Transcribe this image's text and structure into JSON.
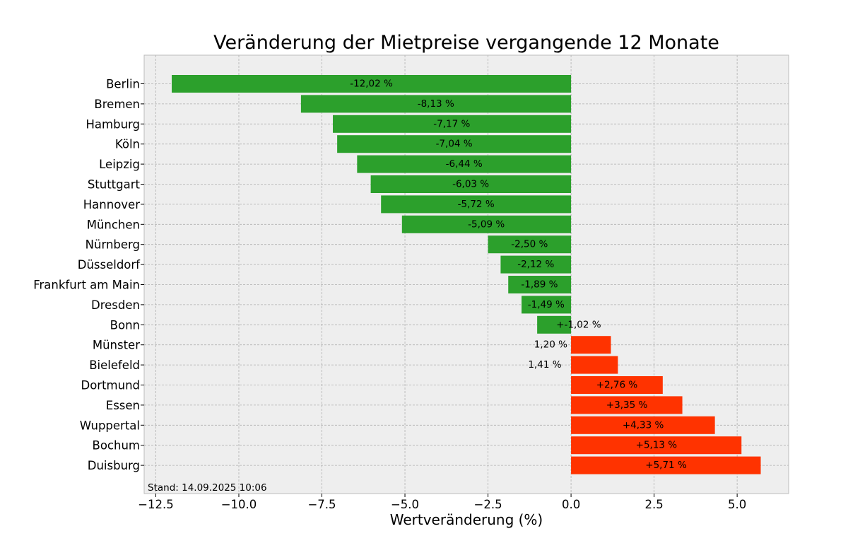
{
  "chart_data": {
    "type": "bar",
    "orientation": "horizontal",
    "title": "Veränderung der Mietpreise vergangende 12 Monate",
    "xlabel": "Wertveränderung (%)",
    "ylabel": "",
    "xlim": [
      -12.85,
      6.55
    ],
    "xticks": [
      -12.5,
      -10.0,
      -7.5,
      -5.0,
      -2.5,
      0.0,
      2.5,
      5.0
    ],
    "xtick_labels": [
      "−12.5",
      "−10.0",
      "−7.5",
      "−5.0",
      "−2.5",
      "0.0",
      "2.5",
      "5.0"
    ],
    "grid": true,
    "footnote": "Stand: 14.09.2025 10:06",
    "colors": {
      "negative": "#2ca02c",
      "positive": "#ff3300",
      "plot_bg": "#eeeeee",
      "grid": "#b0b0b0",
      "frame": "#bcbcbc"
    },
    "categories": [
      "Berlin",
      "Bremen",
      "Hamburg",
      "Köln",
      "Leipzig",
      "Stuttgart",
      "Hannover",
      "München",
      "Nürnberg",
      "Düsseldorf",
      "Frankfurt am Main",
      "Dresden",
      "Bonn",
      "Münster",
      "Bielefeld",
      "Dortmund",
      "Essen",
      "Wuppertal",
      "Bochum",
      "Duisburg"
    ],
    "values": [
      -12.02,
      -8.13,
      -7.17,
      -7.04,
      -6.44,
      -6.03,
      -5.72,
      -5.09,
      -2.5,
      -2.12,
      -1.89,
      -1.49,
      -1.02,
      1.2,
      1.41,
      2.76,
      3.35,
      4.33,
      5.13,
      5.71
    ],
    "bar_colors": [
      "#2ca02c",
      "#2ca02c",
      "#2ca02c",
      "#2ca02c",
      "#2ca02c",
      "#2ca02c",
      "#2ca02c",
      "#2ca02c",
      "#2ca02c",
      "#2ca02c",
      "#2ca02c",
      "#2ca02c",
      "#2ca02c",
      "#ff3300",
      "#ff3300",
      "#ff3300",
      "#ff3300",
      "#ff3300",
      "#ff3300",
      "#ff3300"
    ],
    "labels": [
      "-12,02 %",
      "-8,13 %",
      "-7,17 %",
      "-7,04 %",
      "-6,44 %",
      "-6,03 %",
      "-5,72 %",
      "-5,09 %",
      "-2,50 %",
      "-2,12 %",
      "-1,89 %",
      "-1,49 %",
      "+-1,02 %",
      "1,20 %",
      "1,41 %",
      "+2,76 %",
      "+3,35 %",
      "+4,33 %",
      "+5,13 %",
      "+5,71 %"
    ],
    "label_x_values": [
      -6.01,
      -4.07,
      -3.59,
      -3.52,
      -3.22,
      -3.02,
      -2.86,
      -2.55,
      -1.25,
      -1.06,
      -0.95,
      -0.75,
      0.23,
      -0.61,
      -0.79,
      1.38,
      1.68,
      2.17,
      2.57,
      2.86
    ]
  }
}
